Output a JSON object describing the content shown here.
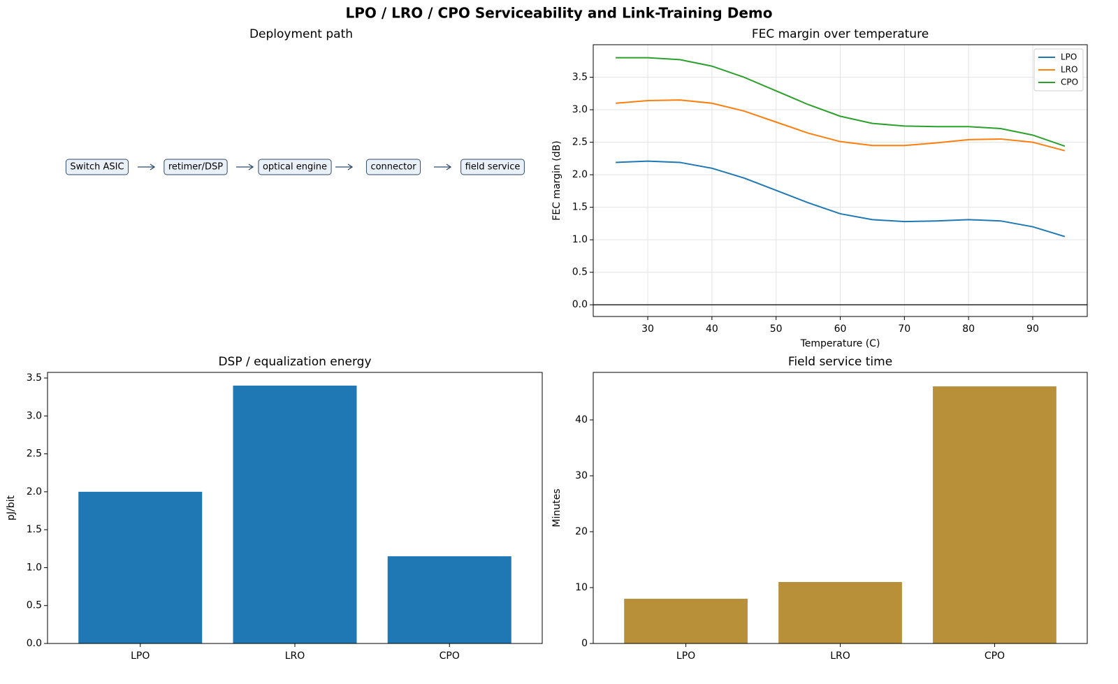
{
  "title": "LPO / LRO / CPO Serviceability and Link-Training Demo",
  "diagram": {
    "title": "Deployment path",
    "nodes": [
      "Switch ASIC",
      "retimer/DSP",
      "optical engine",
      "connector",
      "field service"
    ]
  },
  "chart_data": [
    {
      "type": "line",
      "title": "FEC margin over temperature",
      "xlabel": "Temperature (C)",
      "ylabel": "FEC margin (dB)",
      "x": [
        25,
        30,
        35,
        40,
        45,
        50,
        55,
        60,
        65,
        70,
        75,
        80,
        85,
        90,
        95
      ],
      "series": [
        {
          "name": "LPO",
          "color": "#1f77b4",
          "values": [
            2.19,
            2.21,
            2.19,
            2.1,
            1.95,
            1.76,
            1.57,
            1.4,
            1.31,
            1.28,
            1.29,
            1.31,
            1.29,
            1.2,
            1.05
          ]
        },
        {
          "name": "LRO",
          "color": "#ff7f0e",
          "values": [
            3.1,
            3.14,
            3.15,
            3.1,
            2.98,
            2.81,
            2.64,
            2.51,
            2.45,
            2.45,
            2.49,
            2.54,
            2.55,
            2.5,
            2.37
          ]
        },
        {
          "name": "CPO",
          "color": "#2ca02c",
          "values": [
            3.8,
            3.8,
            3.77,
            3.67,
            3.5,
            3.29,
            3.08,
            2.9,
            2.79,
            2.75,
            2.74,
            2.74,
            2.71,
            2.61,
            2.44
          ]
        }
      ],
      "xlim": [
        21.5,
        98.5
      ],
      "xticks": [
        30,
        40,
        50,
        60,
        70,
        80,
        90
      ],
      "ylim": [
        -0.18,
        4.0
      ],
      "yticks": [
        {
          "value": 0,
          "label": "0.0"
        },
        {
          "value": 0.5,
          "label": "0.5"
        },
        {
          "value": 1,
          "label": "1.0"
        },
        {
          "value": 1.5,
          "label": "1.5"
        },
        {
          "value": 2,
          "label": "2.0"
        },
        {
          "value": 2.5,
          "label": "2.5"
        },
        {
          "value": 3,
          "label": "3.0"
        },
        {
          "value": 3.5,
          "label": "3.5"
        }
      ],
      "axhline": 0,
      "grid": true,
      "legend": "upper right"
    },
    {
      "type": "bar",
      "title": "DSP / equalization energy",
      "ylabel": "pJ/bit",
      "categories": [
        "LPO",
        "LRO",
        "CPO"
      ],
      "values": [
        2.0,
        3.4,
        1.15
      ],
      "color": "#1f77b4",
      "ylim": [
        0,
        3.574
      ],
      "yticks": [
        {
          "value": 0,
          "label": "0.0"
        },
        {
          "value": 0.5,
          "label": "0.5"
        },
        {
          "value": 1,
          "label": "1.0"
        },
        {
          "value": 1.5,
          "label": "1.5"
        },
        {
          "value": 2,
          "label": "2.0"
        },
        {
          "value": 2.5,
          "label": "2.5"
        },
        {
          "value": 3,
          "label": "3.0"
        },
        {
          "value": 3.5,
          "label": "3.5"
        }
      ],
      "grid": false
    },
    {
      "type": "bar",
      "title": "Field service time",
      "ylabel": "Minutes",
      "categories": [
        "LPO",
        "LRO",
        "CPO"
      ],
      "values": [
        8,
        11,
        46
      ],
      "color": "#b8903a",
      "ylim": [
        0,
        48.5
      ],
      "yticks": [
        0,
        10,
        20,
        30,
        40
      ],
      "grid": false
    }
  ]
}
